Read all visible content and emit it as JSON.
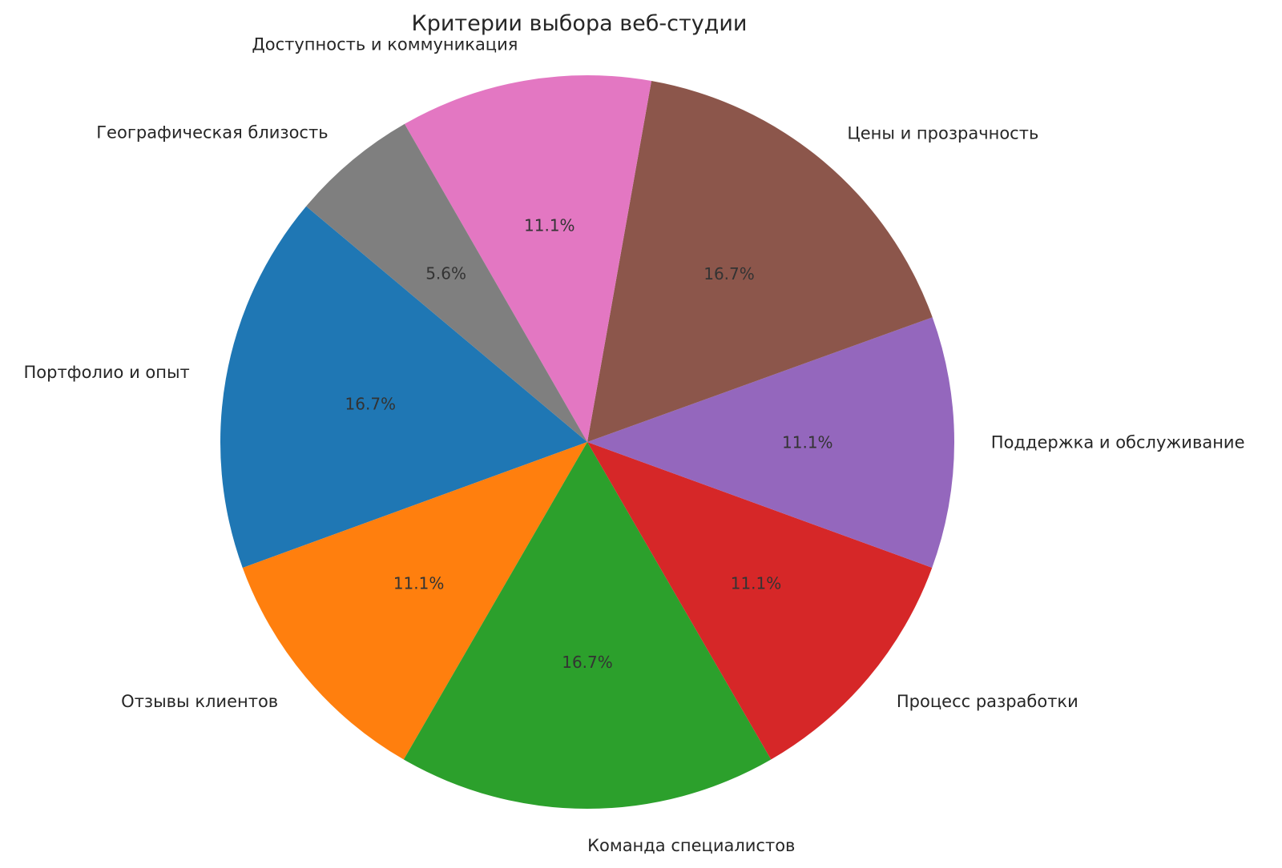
{
  "chart_data": {
    "type": "pie",
    "title": "Критерии выбора веб-студии",
    "start_angle": 140,
    "direction": "counterclockwise",
    "label_distance": 1.1,
    "pct_distance": 0.6,
    "background_color": "#ffffff",
    "title_color": "#262626",
    "label_color": "#262626",
    "pct_color": "#333333",
    "slices": [
      {
        "label": "Портфолио и опыт",
        "value": 16.7,
        "pct_label": "16.7%",
        "color": "#1f77b4"
      },
      {
        "label": "Отзывы клиентов",
        "value": 11.1,
        "pct_label": "11.1%",
        "color": "#ff7f0e"
      },
      {
        "label": "Команда специалистов",
        "value": 16.7,
        "pct_label": "16.7%",
        "color": "#2ca02c"
      },
      {
        "label": "Процесс разработки",
        "value": 11.1,
        "pct_label": "11.1%",
        "color": "#d62728"
      },
      {
        "label": "Поддержка и обслуживание",
        "value": 11.1,
        "pct_label": "11.1%",
        "color": "#9467bd"
      },
      {
        "label": "Цены и прозрачность",
        "value": 16.7,
        "pct_label": "16.7%",
        "color": "#8c564b"
      },
      {
        "label": "Доступность и коммуникация",
        "value": 11.1,
        "pct_label": "11.1%",
        "color": "#e377c2"
      },
      {
        "label": "Географическая близость",
        "value": 5.6,
        "pct_label": "5.6%",
        "color": "#7f7f7f"
      }
    ]
  }
}
